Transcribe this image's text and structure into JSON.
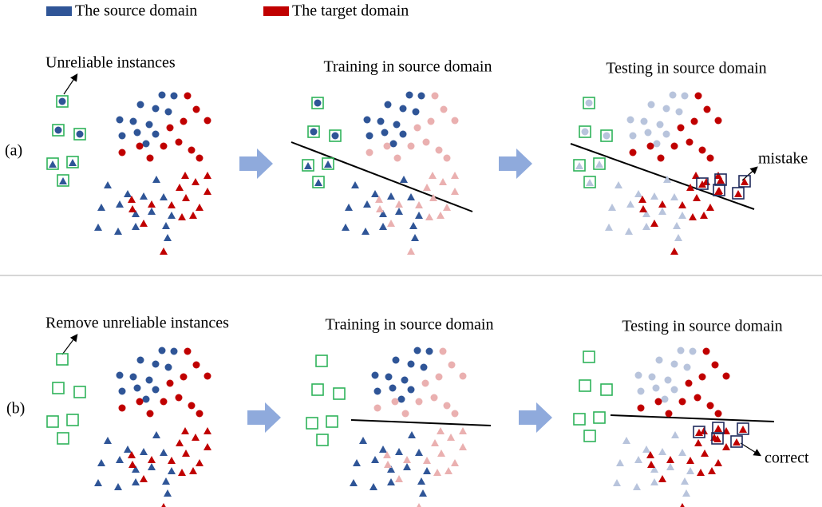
{
  "legend": [
    {
      "label": "The source domain",
      "color": "#2f5597"
    },
    {
      "label": "The target domain",
      "color": "#c00000"
    }
  ],
  "rows": [
    {
      "label": "(a)",
      "annotation": "Unreliable instances",
      "panels": [
        {
          "title": "Training in source domain"
        },
        {
          "title": "Testing in source domain",
          "note": "mistake"
        }
      ]
    },
    {
      "label": "(b)",
      "annotation": "Remove unreliable instances",
      "panels": [
        {
          "title": "Training in source domain"
        },
        {
          "title": "Testing in source domain",
          "note": "correct"
        }
      ]
    }
  ]
}
